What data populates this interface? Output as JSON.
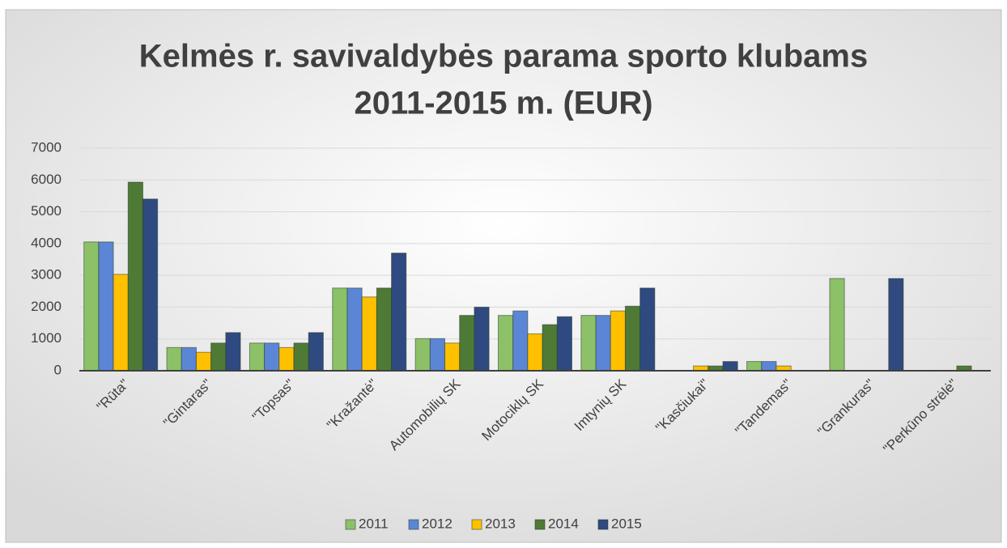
{
  "chart_data": {
    "type": "bar",
    "title": [
      "Kelmės r. savivaldybės parama sporto klubams",
      "2011-2015 m. (EUR)"
    ],
    "categories": [
      "\"Rūta\"",
      "\"Gintaras\"",
      "\"Topsas\"",
      "\"Kražantė\"",
      "Automobilių SK",
      "Motociklų SK",
      "Imtynių SK",
      "\"Kasčiukai\"",
      "\"Tandemas\"",
      "\"Grankuras\"",
      "\"Perkūno strėlė\""
    ],
    "series": [
      {
        "name": "2011",
        "color": "#8cc168",
        "values": [
          4050,
          730,
          870,
          2600,
          1010,
          1740,
          1740,
          0,
          290,
          2900,
          0
        ]
      },
      {
        "name": "2012",
        "color": "#5b86d6",
        "values": [
          4050,
          730,
          870,
          2600,
          1010,
          1880,
          1740,
          0,
          290,
          0,
          0
        ]
      },
      {
        "name": "2013",
        "color": "#ffc000",
        "values": [
          3030,
          580,
          730,
          2320,
          870,
          1160,
          1880,
          150,
          150,
          0,
          0
        ]
      },
      {
        "name": "2014",
        "color": "#4e7a36",
        "values": [
          5930,
          870,
          870,
          2600,
          1740,
          1450,
          2030,
          150,
          0,
          0,
          150
        ]
      },
      {
        "name": "2015",
        "color": "#2f4a80",
        "values": [
          5400,
          1200,
          1200,
          3700,
          2000,
          1700,
          2600,
          290,
          0,
          2900,
          0
        ]
      }
    ],
    "ylim": [
      0,
      7000
    ],
    "yticks": [
      0,
      1000,
      2000,
      3000,
      4000,
      5000,
      6000,
      7000
    ],
    "grid": true,
    "legend": "bottom"
  }
}
